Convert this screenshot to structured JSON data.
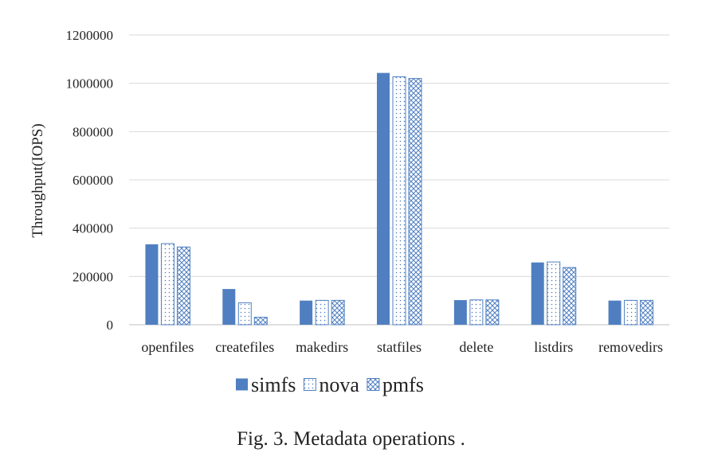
{
  "chart_data": {
    "type": "bar",
    "title": "",
    "xlabel": "",
    "ylabel": "Throughput(IOPS)",
    "ylim": [
      0,
      1200000
    ],
    "yticks": [
      "0",
      "200000",
      "400000",
      "600000",
      "800000",
      "1000000",
      "1200000"
    ],
    "grid": true,
    "legend_position": "bottom",
    "categories": [
      "openfiles",
      "createfiles",
      "makedirs",
      "statfiles",
      "delete",
      "listdirs",
      "removedirs"
    ],
    "series": [
      {
        "name": "simfs",
        "pattern": "solid",
        "color": "#4f7fc0",
        "values": [
          333000,
          148000,
          100000,
          1043000,
          102000,
          258000,
          100000
        ]
      },
      {
        "name": "nova",
        "pattern": "dotted",
        "color": "#4f7fc0",
        "values": [
          336000,
          91000,
          101000,
          1027000,
          103000,
          260000,
          101000
        ]
      },
      {
        "name": "pmfs",
        "pattern": "crosshatch",
        "color": "#4f7fc0",
        "values": [
          322000,
          31000,
          101000,
          1020000,
          103000,
          237000,
          101000
        ]
      }
    ]
  },
  "caption": "Fig. 3.  Metadata operations ."
}
